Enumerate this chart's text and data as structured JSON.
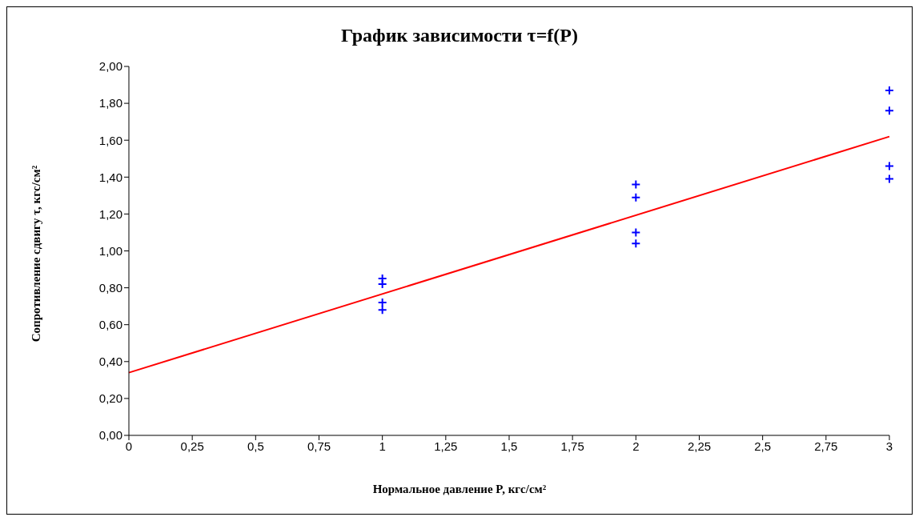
{
  "chart_data": {
    "type": "scatter",
    "title": "График зависимости τ=f(P)",
    "xlabel": "Нормальное давление P, кгс/см²",
    "ylabel": "Сопротивление сдвигу τ, кгс/см²",
    "series": [
      {
        "type": "scatter",
        "color": "#0000ff",
        "marker": "cross",
        "x": [
          1,
          1,
          1,
          1,
          2,
          2,
          2,
          2,
          3,
          3,
          3,
          3
        ],
        "values": [
          0.85,
          0.82,
          0.72,
          0.68,
          1.36,
          1.29,
          1.1,
          1.04,
          1.87,
          1.76,
          1.46,
          1.39
        ]
      },
      {
        "type": "line",
        "color": "#ff0000",
        "marker": "none",
        "line_style": "solid",
        "x": [
          0,
          3
        ],
        "values": [
          0.34,
          1.62
        ]
      }
    ],
    "xlim": [
      0,
      3
    ],
    "xticks": [
      0,
      {
        "value": 0.25,
        "label": "0,25"
      },
      {
        "value": 0.5,
        "label": "0,5"
      },
      {
        "value": 0.75,
        "label": "0,75"
      },
      1,
      {
        "value": 1.25,
        "label": "1,25"
      },
      {
        "value": 1.5,
        "label": "1,5"
      },
      {
        "value": 1.75,
        "label": "1,75"
      },
      2,
      {
        "value": 2.25,
        "label": "2,25"
      },
      {
        "value": 2.5,
        "label": "2,5"
      },
      {
        "value": 2.75,
        "label": "2,75"
      },
      3
    ],
    "ylim": [
      0,
      2
    ],
    "yticks": [
      {
        "value": 0,
        "label": "0,00"
      },
      {
        "value": 0.2,
        "label": "0,20"
      },
      {
        "value": 0.4,
        "label": "0,40"
      },
      {
        "value": 0.6,
        "label": "0,60"
      },
      {
        "value": 0.8,
        "label": "0,80"
      },
      {
        "value": 1,
        "label": "1,00"
      },
      {
        "value": 1.2,
        "label": "1,20"
      },
      {
        "value": 1.4,
        "label": "1,40"
      },
      {
        "value": 1.6,
        "label": "1,60"
      },
      {
        "value": 1.8,
        "label": "1,80"
      },
      {
        "value": 2,
        "label": "2,00"
      }
    ],
    "grid": false,
    "legend": false
  }
}
